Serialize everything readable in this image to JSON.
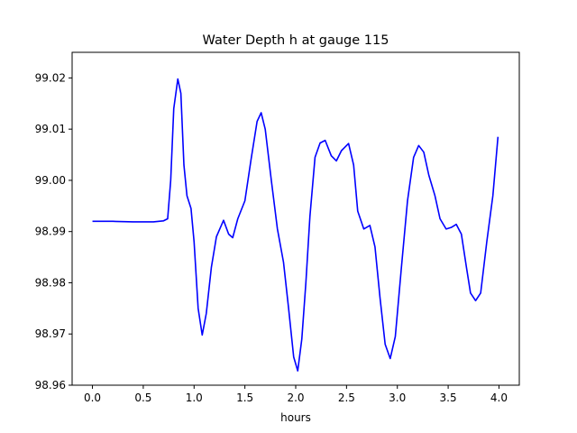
{
  "chart_data": {
    "type": "line",
    "title": "Water Depth h at gauge 115",
    "xlabel": "hours",
    "ylabel": "",
    "xlim": [
      -0.2,
      4.2
    ],
    "ylim": [
      98.96,
      99.025
    ],
    "xticks": [
      0.0,
      0.5,
      1.0,
      1.5,
      2.0,
      2.5,
      3.0,
      3.5,
      4.0
    ],
    "xtick_labels": [
      "0.0",
      "0.5",
      "1.0",
      "1.5",
      "2.0",
      "2.5",
      "3.0",
      "3.5",
      "4.0"
    ],
    "yticks": [
      98.96,
      98.97,
      98.98,
      98.99,
      99.0,
      99.01,
      99.02
    ],
    "ytick_labels": [
      "98.96",
      "98.97",
      "98.98",
      "98.99",
      "99.00",
      "99.01",
      "99.02"
    ],
    "grid": false,
    "series": [
      {
        "color": "#0000ff",
        "points": [
          [
            0.0,
            98.992
          ],
          [
            0.2,
            98.992
          ],
          [
            0.4,
            98.9919
          ],
          [
            0.6,
            98.9919
          ],
          [
            0.7,
            98.9921
          ],
          [
            0.74,
            98.9925
          ],
          [
            0.77,
            99.0
          ],
          [
            0.8,
            99.014
          ],
          [
            0.84,
            99.0198
          ],
          [
            0.87,
            99.017
          ],
          [
            0.9,
            99.003
          ],
          [
            0.93,
            98.997
          ],
          [
            0.97,
            98.9945
          ],
          [
            1.0,
            98.988
          ],
          [
            1.04,
            98.975
          ],
          [
            1.08,
            98.9698
          ],
          [
            1.12,
            98.974
          ],
          [
            1.17,
            98.983
          ],
          [
            1.22,
            98.989
          ],
          [
            1.29,
            98.9922
          ],
          [
            1.34,
            98.9895
          ],
          [
            1.38,
            98.9888
          ],
          [
            1.43,
            98.9925
          ],
          [
            1.5,
            98.996
          ],
          [
            1.56,
            99.004
          ],
          [
            1.62,
            99.0115
          ],
          [
            1.66,
            99.0132
          ],
          [
            1.7,
            99.01
          ],
          [
            1.76,
            99.0
          ],
          [
            1.82,
            98.9905
          ],
          [
            1.88,
            98.984
          ],
          [
            1.93,
            98.975
          ],
          [
            1.98,
            98.9655
          ],
          [
            2.02,
            98.9628
          ],
          [
            2.06,
            98.969
          ],
          [
            2.1,
            98.98
          ],
          [
            2.14,
            98.993
          ],
          [
            2.19,
            99.0045
          ],
          [
            2.24,
            99.0073
          ],
          [
            2.29,
            99.0078
          ],
          [
            2.35,
            99.0048
          ],
          [
            2.4,
            99.0038
          ],
          [
            2.45,
            99.0058
          ],
          [
            2.52,
            99.0072
          ],
          [
            2.57,
            99.003
          ],
          [
            2.61,
            98.994
          ],
          [
            2.67,
            98.9905
          ],
          [
            2.73,
            98.9912
          ],
          [
            2.78,
            98.987
          ],
          [
            2.83,
            98.977
          ],
          [
            2.88,
            98.968
          ],
          [
            2.93,
            98.9652
          ],
          [
            2.98,
            98.9695
          ],
          [
            3.04,
            98.983
          ],
          [
            3.1,
            98.996
          ],
          [
            3.16,
            99.0045
          ],
          [
            3.21,
            99.0068
          ],
          [
            3.26,
            99.0055
          ],
          [
            3.31,
            99.001
          ],
          [
            3.37,
            98.997
          ],
          [
            3.42,
            98.9925
          ],
          [
            3.48,
            98.9905
          ],
          [
            3.53,
            98.9908
          ],
          [
            3.58,
            98.9914
          ],
          [
            3.63,
            98.9895
          ],
          [
            3.68,
            98.983
          ],
          [
            3.72,
            98.978
          ],
          [
            3.77,
            98.9765
          ],
          [
            3.82,
            98.978
          ],
          [
            3.88,
            98.988
          ],
          [
            3.94,
            98.997
          ],
          [
            3.99,
            99.0085
          ]
        ]
      }
    ]
  }
}
